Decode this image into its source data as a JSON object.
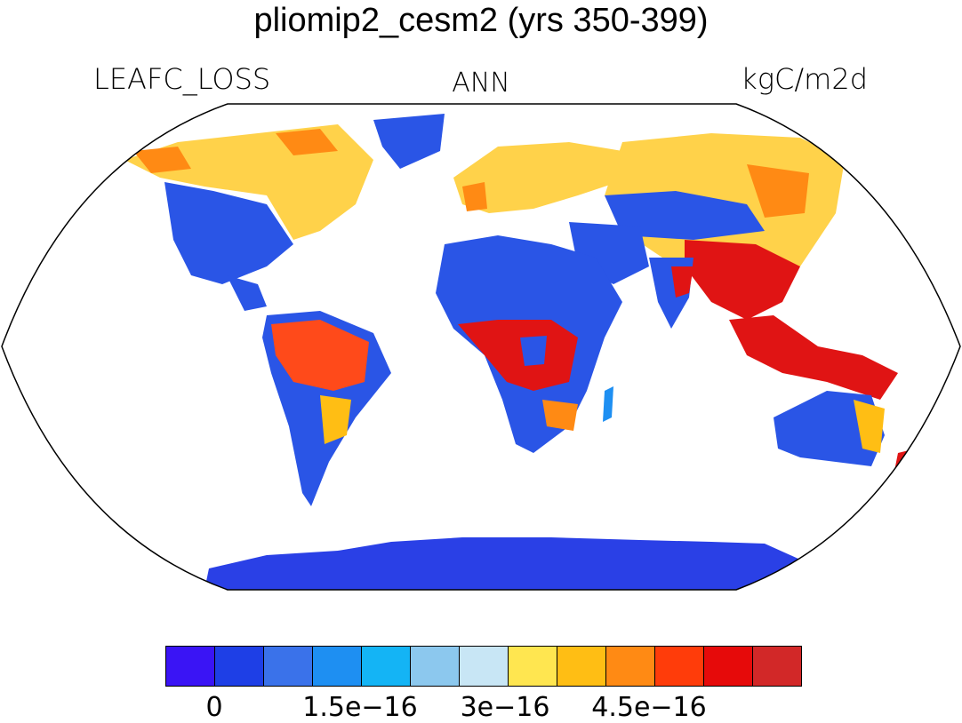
{
  "title": "pliomip2_cesm2 (yrs 350-399)",
  "left_label": "LEAFC_LOSS",
  "center_label": "ANN",
  "right_label": "kgC/m2d",
  "projection": "Robinson",
  "colorbar": {
    "colors": [
      "#3a14f5",
      "#1e3fe6",
      "#3a72ea",
      "#1e8ff2",
      "#14b4f5",
      "#8cc8ee",
      "#c8e6f5",
      "#ffe650",
      "#ffbe14",
      "#ff8a14",
      "#ff3c0a",
      "#e60a0a",
      "#d22828"
    ],
    "tick_labels": [
      "0",
      "1.5e−16",
      "3e−16",
      "4.5e−16"
    ]
  }
}
